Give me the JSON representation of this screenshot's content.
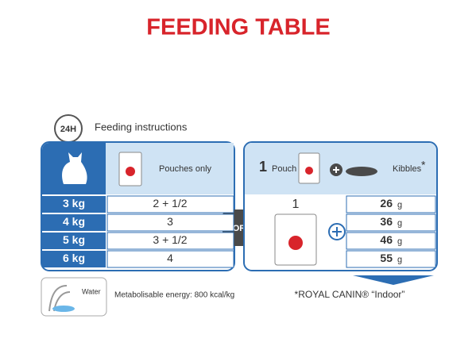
{
  "title": "FEEDING TABLE",
  "instructions": {
    "badge": "24H",
    "label": "Feeding instructions"
  },
  "left_table": {
    "header": "Pouches only",
    "rows": [
      {
        "weight": "3 kg",
        "pouches": "2 + 1/2"
      },
      {
        "weight": "4 kg",
        "pouches": "3"
      },
      {
        "weight": "5 kg",
        "pouches": "3 + 1/2"
      },
      {
        "weight": "6 kg",
        "pouches": "4"
      }
    ]
  },
  "separator": "OR",
  "right_table": {
    "header": {
      "count": "1",
      "pouch": "Pouch",
      "kibbles": "Kibbles",
      "note_mark": "*"
    },
    "pouch_count": "1",
    "kibbles": [
      {
        "amount": "26",
        "unit": "g"
      },
      {
        "amount": "36",
        "unit": "g"
      },
      {
        "amount": "46",
        "unit": "g"
      },
      {
        "amount": "55",
        "unit": "g"
      }
    ]
  },
  "footer": {
    "water": "Water",
    "energy": "Metabolisable energy: 800 kcal/kg",
    "product": "*ROYAL CANIN® “Indoor”"
  }
}
